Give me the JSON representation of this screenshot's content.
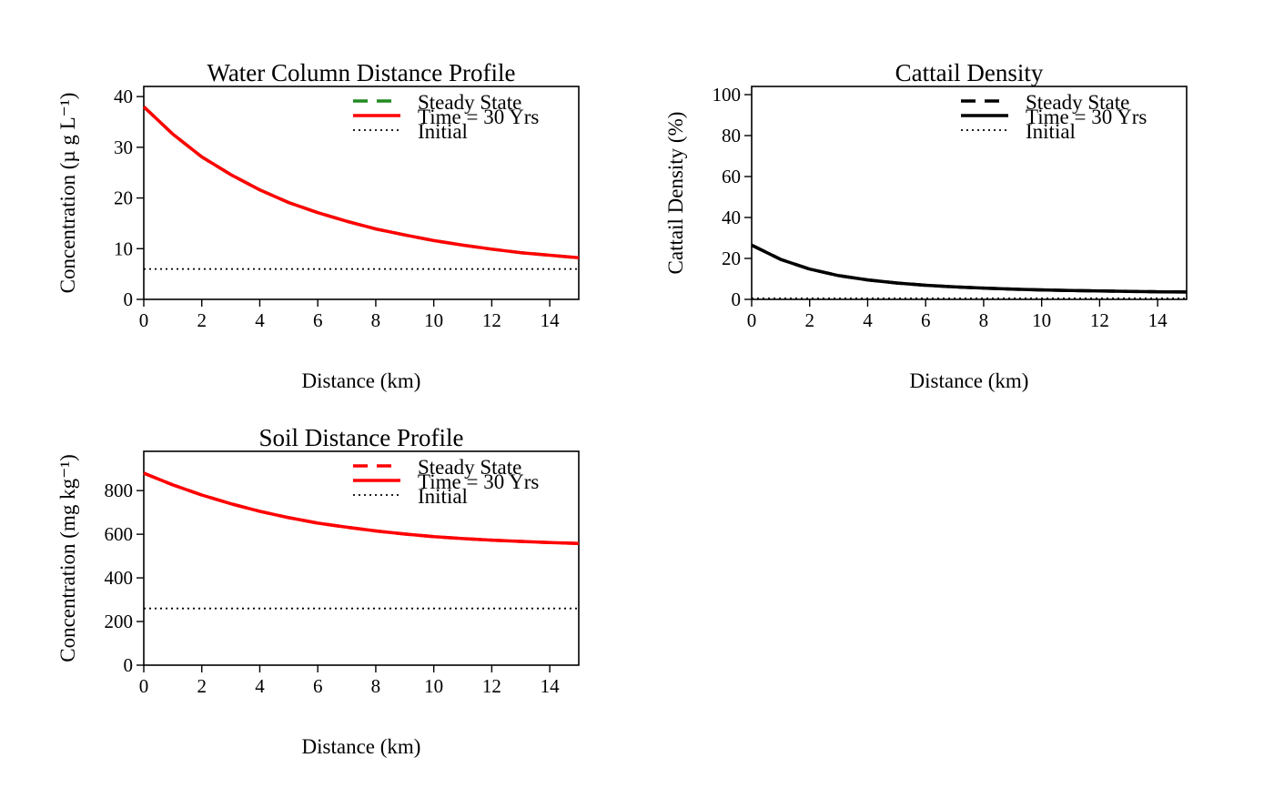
{
  "chart_data": [
    {
      "type": "line",
      "title": "Water Column Distance Profile",
      "xlabel": "Distance (km)",
      "ylabel": "Concentration (µ g L⁻¹)",
      "xlim": [
        0,
        15
      ],
      "ylim": [
        0,
        42
      ],
      "xticks": [
        0,
        2,
        4,
        6,
        8,
        10,
        12,
        14
      ],
      "yticks": [
        0,
        10,
        20,
        30,
        40
      ],
      "legend": "top-right",
      "grid": false,
      "x": [
        0,
        1,
        2,
        3,
        4,
        5,
        6,
        7,
        8,
        9,
        10,
        11,
        12,
        13,
        14,
        15
      ],
      "series": [
        {
          "name": "Steady State",
          "style": "dashed",
          "color": "#228B22",
          "values": [
            38,
            32.6,
            28.1,
            24.6,
            21.6,
            19.1,
            17.1,
            15.4,
            13.9,
            12.7,
            11.6,
            10.7,
            9.9,
            9.2,
            8.7,
            8.2
          ]
        },
        {
          "name": "Time = 30 Yrs",
          "style": "solid",
          "color": "#ff0000",
          "values": [
            38,
            32.6,
            28.1,
            24.6,
            21.6,
            19.1,
            17.1,
            15.4,
            13.9,
            12.7,
            11.6,
            10.7,
            9.9,
            9.2,
            8.7,
            8.2
          ]
        },
        {
          "name": "Initial",
          "style": "dotted",
          "color": "#000000",
          "values": [
            6,
            6,
            6,
            6,
            6,
            6,
            6,
            6,
            6,
            6,
            6,
            6,
            6,
            6,
            6,
            6
          ]
        }
      ]
    },
    {
      "type": "line",
      "title": "Cattail Density",
      "xlabel": "Distance (km)",
      "ylabel": "Cattail Density (%)",
      "xlim": [
        0,
        15
      ],
      "ylim": [
        0,
        104
      ],
      "xticks": [
        0,
        2,
        4,
        6,
        8,
        10,
        12,
        14
      ],
      "yticks": [
        0,
        20,
        40,
        60,
        80,
        100
      ],
      "legend": "top-right",
      "grid": false,
      "x": [
        0,
        1,
        2,
        3,
        4,
        5,
        6,
        7,
        8,
        9,
        10,
        11,
        12,
        13,
        14,
        15
      ],
      "series": [
        {
          "name": "Steady State",
          "style": "dashed",
          "color": "#000000",
          "values": [
            26.5,
            19.5,
            14.8,
            11.6,
            9.5,
            8,
            6.9,
            6.1,
            5.5,
            5,
            4.6,
            4.3,
            4.1,
            3.9,
            3.7,
            3.6
          ]
        },
        {
          "name": "Time = 30 Yrs",
          "style": "solid",
          "color": "#000000",
          "values": [
            26.5,
            19.5,
            14.8,
            11.6,
            9.5,
            8,
            6.9,
            6.1,
            5.5,
            5,
            4.6,
            4.3,
            4.1,
            3.9,
            3.7,
            3.6
          ]
        },
        {
          "name": "Initial",
          "style": "dotted",
          "color": "#000000",
          "values": [
            0.5,
            0.5,
            0.5,
            0.5,
            0.5,
            0.5,
            0.5,
            0.5,
            0.5,
            0.5,
            0.5,
            0.5,
            0.5,
            0.5,
            0.5,
            0.5
          ]
        }
      ]
    },
    {
      "type": "line",
      "title": "Soil Distance Profile",
      "xlabel": "Distance (km)",
      "ylabel": "Concentration (mg kg⁻¹)",
      "xlim": [
        0,
        15
      ],
      "ylim": [
        0,
        980
      ],
      "xticks": [
        0,
        2,
        4,
        6,
        8,
        10,
        12,
        14
      ],
      "yticks": [
        0,
        200,
        400,
        600,
        800
      ],
      "legend": "top-right",
      "grid": false,
      "x": [
        0,
        1,
        2,
        3,
        4,
        5,
        6,
        7,
        8,
        9,
        10,
        11,
        12,
        13,
        14,
        15
      ],
      "series": [
        {
          "name": "Steady State",
          "style": "dashed",
          "color": "#ff0000",
          "values": [
            880,
            826,
            780,
            740,
            705,
            676,
            651,
            632,
            615,
            601,
            589,
            580,
            573,
            567,
            562,
            558
          ]
        },
        {
          "name": "Time = 30 Yrs",
          "style": "solid",
          "color": "#ff0000",
          "values": [
            880,
            826,
            780,
            740,
            705,
            676,
            651,
            632,
            615,
            601,
            589,
            580,
            573,
            567,
            562,
            558
          ]
        },
        {
          "name": "Initial",
          "style": "dotted",
          "color": "#000000",
          "values": [
            260,
            260,
            260,
            260,
            260,
            260,
            260,
            260,
            260,
            260,
            260,
            260,
            260,
            260,
            260,
            260
          ]
        }
      ]
    }
  ]
}
